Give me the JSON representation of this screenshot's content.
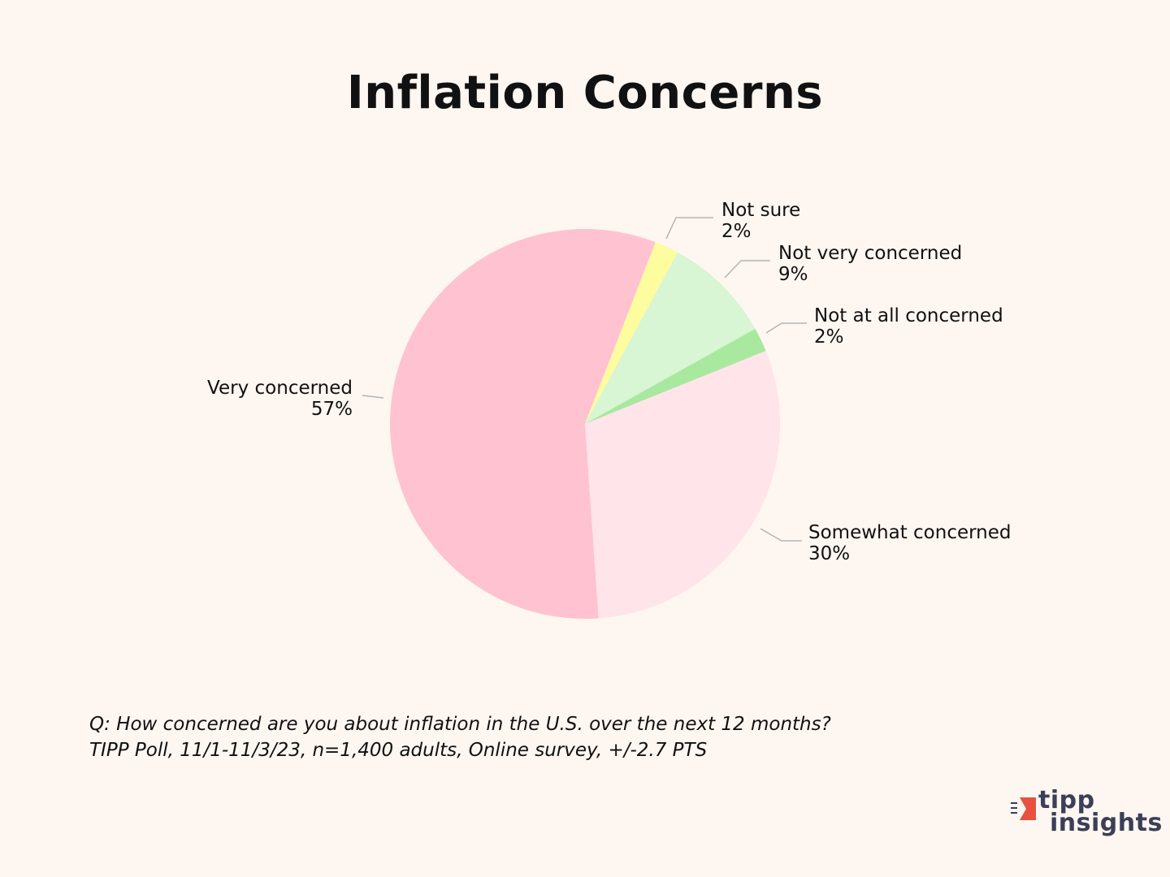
{
  "chart_data": {
    "type": "pie",
    "title": "Inflation Concerns",
    "slices": [
      {
        "label": "Very concerned",
        "value_label": "57%",
        "value": 57,
        "color": "#ffc2d1"
      },
      {
        "label": "Not sure",
        "value_label": "2%",
        "value": 2,
        "color": "#fdfc9e"
      },
      {
        "label": "Not very concerned",
        "value_label": "9%",
        "value": 9,
        "color": "#d8f5d4"
      },
      {
        "label": "Not at all concerned",
        "value_label": "2%",
        "value": 2,
        "color": "#a9e89f"
      },
      {
        "label": "Somewhat concerned",
        "value_label": "30%",
        "value": 30,
        "color": "#ffe4ea"
      }
    ]
  },
  "footnote": {
    "question": "Q:  How concerned are you about inflation in the U.S. over the next 12 months?",
    "source": "TIPP Poll, 11/1-11/3/23, n=1,400 adults, Online survey, +/-2.7 PTS"
  },
  "logo": {
    "line1": "tipp",
    "line2": "insights",
    "brand_color": "#e8503f",
    "text_color": "#3b3f57"
  },
  "colors": {
    "background": "#fdf6f1",
    "leader_line": "#b5b5b5"
  }
}
